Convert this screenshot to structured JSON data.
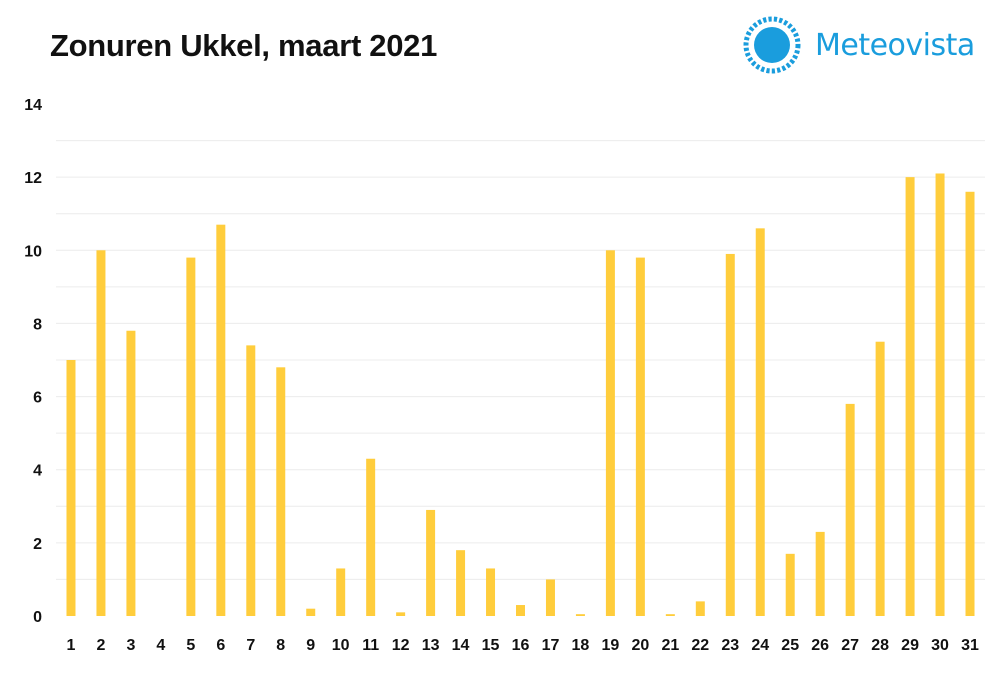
{
  "header": {
    "title": "Zonuren Ukkel, maart 2021",
    "brand": "Meteovista"
  },
  "colors": {
    "bar": "#ffcd3c",
    "brand": "#1a9ddd",
    "grid": "#ececec"
  },
  "chart_data": {
    "type": "bar",
    "title": "Zonuren Ukkel, maart 2021",
    "xlabel": "",
    "ylabel": "",
    "categories": [
      "1",
      "2",
      "3",
      "4",
      "5",
      "6",
      "7",
      "8",
      "9",
      "10",
      "11",
      "12",
      "13",
      "14",
      "15",
      "16",
      "17",
      "18",
      "19",
      "20",
      "21",
      "22",
      "23",
      "24",
      "25",
      "26",
      "27",
      "28",
      "29",
      "30",
      "31"
    ],
    "values": [
      7.0,
      10.0,
      7.8,
      0,
      9.8,
      10.7,
      7.4,
      6.8,
      0.2,
      1.3,
      4.3,
      0.1,
      2.9,
      1.8,
      1.3,
      0.3,
      1.0,
      0.05,
      10.0,
      9.8,
      0.05,
      0.4,
      9.9,
      10.6,
      1.7,
      2.3,
      5.8,
      7.5,
      12.0,
      12.1,
      11.6
    ],
    "ylim": [
      0,
      14
    ],
    "yticks": [
      0,
      2,
      4,
      6,
      8,
      10,
      12,
      14
    ],
    "grid": true,
    "legend": "none"
  }
}
